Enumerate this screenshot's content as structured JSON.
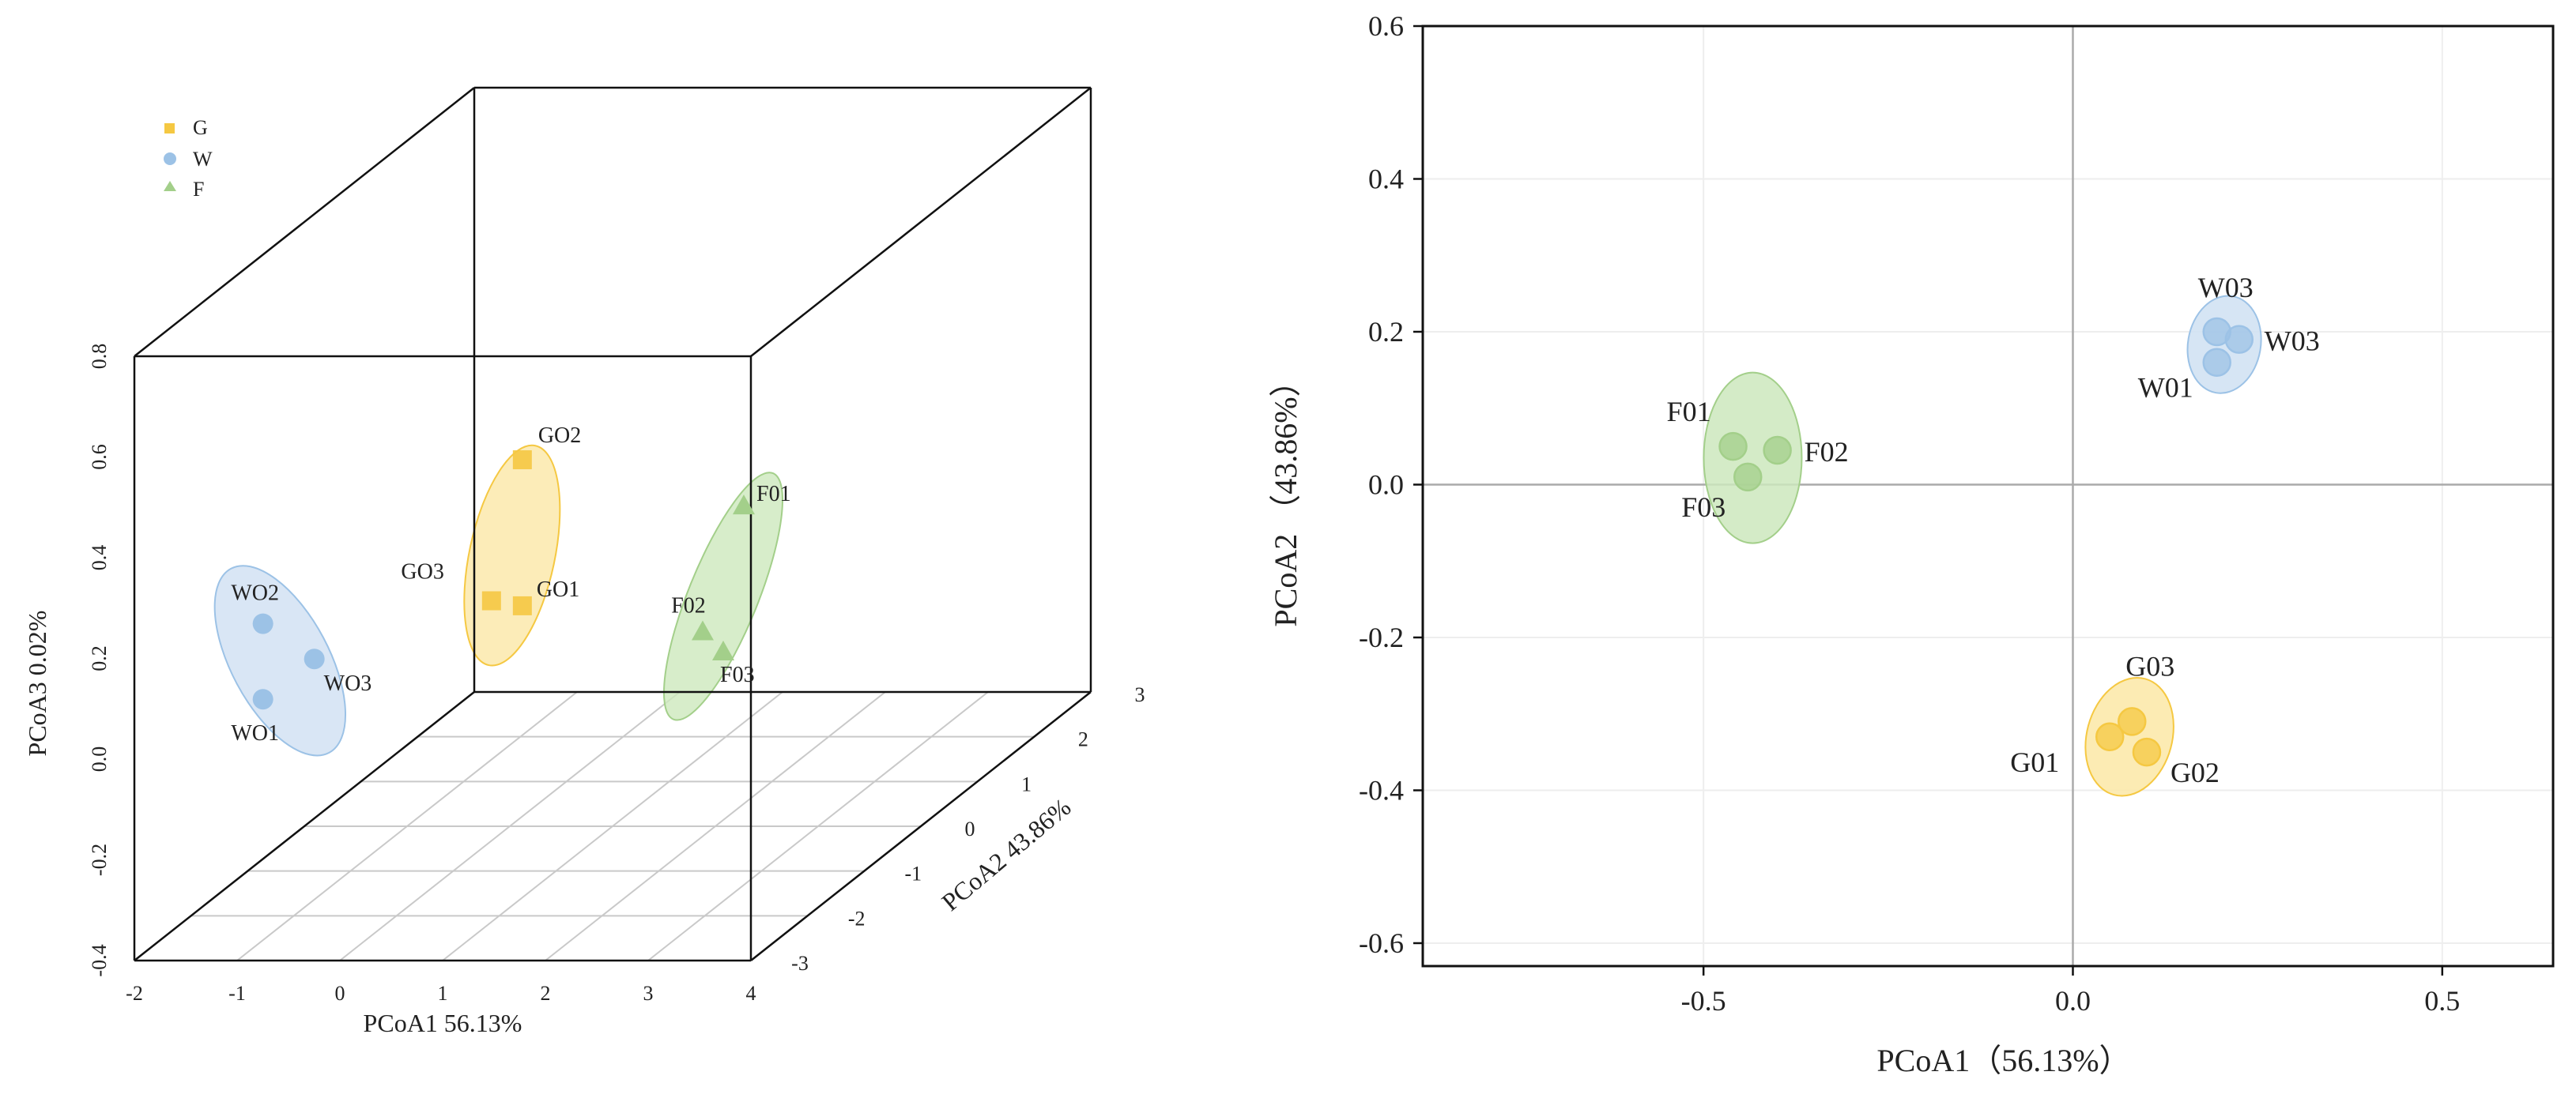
{
  "colors": {
    "G": "#f5c842",
    "W": "#9cc2e6",
    "F": "#a3cf8a",
    "G_ellipse": "#fbe7a6",
    "W_ellipse": "#cfe0f2",
    "F_ellipse": "#cde8bd"
  },
  "chart_data": [
    {
      "type": "scatter",
      "subtype": "3d",
      "title": "",
      "xlabel": "PCoA1 56.13%",
      "ylabel": "PCoA2 43.86%",
      "zlabel": "PCoA3 0.02%",
      "xlim": [
        -2,
        4
      ],
      "ylim": [
        -3,
        3
      ],
      "zlim": [
        -0.4,
        0.8
      ],
      "x_ticks": [
        "-2",
        "-1",
        "0",
        "1",
        "2",
        "3",
        "4"
      ],
      "y_ticks": [
        "-3",
        "-2",
        "-1",
        "0",
        "1",
        "2",
        "3"
      ],
      "z_ticks": [
        "-0.4",
        "-0.2",
        "0.0",
        "0.2",
        "0.4",
        "0.6",
        "0.8"
      ],
      "grid": true,
      "legend_position": "top-left",
      "legend": [
        {
          "group": "G",
          "label": "G",
          "marker": "square"
        },
        {
          "group": "W",
          "label": "W",
          "marker": "circle"
        },
        {
          "group": "F",
          "label": "F",
          "marker": "triangle"
        }
      ],
      "series": [
        {
          "group": "G",
          "points": [
            {
              "label": "GO1",
              "x": 1.5,
              "y": -2.5,
              "z": 0.26
            },
            {
              "label": "GO2",
              "x": 1.5,
              "y": -2.5,
              "z": 0.55
            },
            {
              "label": "GO3",
              "x": 1.2,
              "y": -2.5,
              "z": 0.27
            }
          ]
        },
        {
          "group": "W",
          "points": [
            {
              "label": "WO1",
              "x": -1.3,
              "y": -2.0,
              "z": 0.03
            },
            {
              "label": "WO2",
              "x": -1.3,
              "y": -2.0,
              "z": 0.18
            },
            {
              "label": "WO3",
              "x": -0.8,
              "y": -2.0,
              "z": 0.11
            }
          ]
        },
        {
          "group": "F",
          "points": [
            {
              "label": "F01",
              "x": 3.6,
              "y": -2.4,
              "z": 0.45
            },
            {
              "label": "F02",
              "x": 3.2,
              "y": -2.4,
              "z": 0.2
            },
            {
              "label": "F03",
              "x": 3.4,
              "y": -2.4,
              "z": 0.16
            }
          ]
        }
      ]
    },
    {
      "type": "scatter",
      "title": "",
      "xlabel": "PCoA1（56.13%）",
      "ylabel": "PCoA2 （43.86%）",
      "xlim": [
        -0.88,
        0.65
      ],
      "ylim": [
        -0.63,
        0.6
      ],
      "x_ticks": [
        "-0.5",
        "0.0",
        "0.5"
      ],
      "y_ticks": [
        "-0.6",
        "-0.4",
        "-0.2",
        "0.0",
        "0.2",
        "0.4",
        "0.6"
      ],
      "grid": true,
      "series": [
        {
          "group": "F",
          "points": [
            {
              "label": "F01",
              "x": -0.46,
              "y": 0.05
            },
            {
              "label": "F02",
              "x": -0.4,
              "y": 0.045
            },
            {
              "label": "F03",
              "x": -0.44,
              "y": 0.01
            }
          ]
        },
        {
          "group": "W",
          "points": [
            {
              "label": "W03",
              "x": 0.195,
              "y": 0.2
            },
            {
              "label": "W03",
              "x": 0.225,
              "y": 0.19
            },
            {
              "label": "W01",
              "x": 0.195,
              "y": 0.16
            }
          ]
        },
        {
          "group": "G",
          "points": [
            {
              "label": "G01",
              "x": 0.05,
              "y": -0.33
            },
            {
              "label": "G02",
              "x": 0.1,
              "y": -0.35
            },
            {
              "label": "G03",
              "x": 0.08,
              "y": -0.31
            }
          ]
        }
      ]
    }
  ]
}
